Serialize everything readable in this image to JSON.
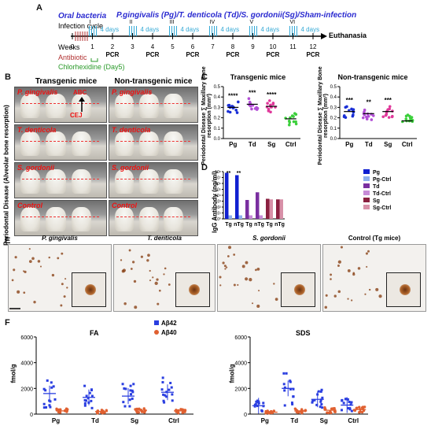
{
  "panelA": {
    "label": "A",
    "oral_bacteria_label": "Oral bacteria",
    "infection_groups": "P.gingivalis (Pg)/T. denticola (Td)/S. gordonii(Sg)/Sham-infection",
    "infection_cycle_label": "Infection cycle",
    "cycles": [
      "I",
      "II",
      "III",
      "IV",
      "V",
      "VI"
    ],
    "four_days": "4 days",
    "weeks_label": "Weeks",
    "week_ticks": [
      "0",
      "1",
      "2",
      "3",
      "4",
      "5",
      "6",
      "7",
      "8",
      "9",
      "10",
      "11",
      "12"
    ],
    "pcr": "PCR",
    "euthanasia": "Euthanasia",
    "antibiotic": "Antibiotic",
    "chlorhexidine": "Chlorhexidine (Day5)",
    "colors": {
      "title": "#2a2ad0",
      "antibiotic": "#b03030",
      "chlorhexidine": "#2a9a2a",
      "cycle_ticks": "#35a9d6"
    }
  },
  "panelB": {
    "label": "B",
    "col_transgenic": "Transgenic mice",
    "col_nontransgenic": "Non-transgenic mice",
    "y_axis": "Periodontal Disease (Alveolar bone resorption)",
    "rows": [
      "P. gingivalis",
      "T. denticola",
      "S. gordonii",
      "Control"
    ],
    "abc": "ABC",
    "cej": "CEJ"
  },
  "panelC": {
    "label": "C",
    "ylabel": "Periodontal Disease ∑ Maxillary Bone resorption (mm²)",
    "charts": [
      {
        "title": "Transgenic mice",
        "categories": [
          "Pg",
          "Td",
          "Sg",
          "Ctrl"
        ],
        "means": [
          0.3,
          0.33,
          0.31,
          0.19
        ],
        "sig": [
          "****",
          "***",
          "****",
          ""
        ],
        "colors": [
          "#1a2fd6",
          "#b34fd6",
          "#e0389a",
          "#3ccf3c"
        ],
        "yticks": [
          "0.0",
          "0.1",
          "0.2",
          "0.3",
          "0.4",
          "0.5"
        ],
        "ylim": [
          0,
          0.5
        ]
      },
      {
        "title": "Non-transgenic mice",
        "categories": [
          "Pg",
          "Td",
          "Sg",
          "Ctrl"
        ],
        "means": [
          0.26,
          0.24,
          0.26,
          0.17
        ],
        "sig": [
          "***",
          "**",
          "***",
          ""
        ],
        "colors": [
          "#1a2fd6",
          "#b34fd6",
          "#e0389a",
          "#3ccf3c"
        ],
        "yticks": [
          "0.0",
          "0.1",
          "0.2",
          "0.3",
          "0.4",
          "0.5"
        ],
        "ylim": [
          0,
          0.5
        ]
      }
    ]
  },
  "panelD": {
    "label": "D",
    "ylabel": "IgG Antibody (ng/ml)",
    "categories": [
      "Tg",
      "nTg",
      "Tg",
      "nTg",
      "Tg",
      "nTg"
    ],
    "sig": [
      "**",
      "**"
    ],
    "legend": [
      "Pg",
      "Pg-Ctrl",
      "Td",
      "Td-Ctrl",
      "Sg",
      "Sg-Ctrl"
    ],
    "legend_colors": [
      "#1020d0",
      "#8fb0ee",
      "#7a2fa0",
      "#c78bd8",
      "#8a2040",
      "#d890a8"
    ],
    "yticks": [
      "10⁰",
      "10¹",
      "10²",
      "10³",
      "10⁴",
      "10⁵",
      "10⁶",
      "10⁷",
      "10⁸"
    ],
    "log10_values": [
      7.8,
      7.4,
      3.2,
      4.5,
      3.4,
      3.3
    ],
    "log10_ctrl_values": [
      0.6,
      0.6,
      0.6,
      0.6,
      3.3,
      3.3
    ]
  },
  "panelE": {
    "label": "E",
    "titles": [
      "P. gingivalis",
      "T. denticola",
      "S. gordonii",
      "Control (Tg mice)"
    ]
  },
  "panelF": {
    "label": "F",
    "legend": [
      "Aβ42",
      "Aβ40"
    ],
    "legend_colors": [
      "#2a3ee0",
      "#e06030"
    ],
    "ylabel": "fmol/g",
    "charts": [
      {
        "title": "FA",
        "categories": [
          "Pg",
          "Td",
          "Sg",
          "Ctrl"
        ],
        "yticks": [
          "0",
          "2000",
          "4000",
          "6000"
        ],
        "ylim": [
          0,
          6000
        ],
        "ab42_means": [
          1600,
          1300,
          1400,
          1700
        ],
        "ab40_means": [
          250,
          200,
          300,
          250
        ]
      },
      {
        "title": "SDS",
        "categories": [
          "Pg",
          "Td",
          "Sg",
          "Ctrl"
        ],
        "yticks": [
          "0",
          "2000",
          "4000",
          "6000"
        ],
        "ylim": [
          0,
          6000
        ],
        "ab42_means": [
          650,
          2000,
          1150,
          700
        ],
        "ab40_means": [
          150,
          250,
          300,
          350
        ]
      }
    ]
  }
}
